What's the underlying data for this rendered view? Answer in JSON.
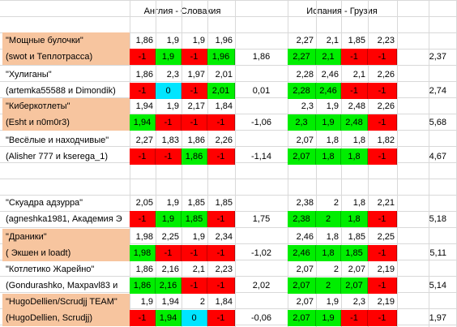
{
  "headers": {
    "match1": "Англия - Словакия",
    "match2": "Испания - Грузия"
  },
  "colors": {
    "red": "#ff0000",
    "green": "#00ee00",
    "cyan": "#00e5ff",
    "name_bg": "#f7c59f"
  },
  "teams": [
    {
      "name1": "\"Мощные булочки\"",
      "name2": "(swot и Теплотрасса)",
      "highlight": true,
      "odds1": [
        "1,86",
        "1,9",
        "1,9",
        "1,96"
      ],
      "res1": [
        {
          "v": "-1",
          "c": "red"
        },
        {
          "v": "1,9",
          "c": "green"
        },
        {
          "v": "-1",
          "c": "red"
        },
        {
          "v": "1,96",
          "c": "green"
        }
      ],
      "sum1": "1,86",
      "odds2": [
        "2,27",
        "2,1",
        "1,85",
        "2,23"
      ],
      "res2": [
        {
          "v": "2,27",
          "c": "green"
        },
        {
          "v": "2,1",
          "c": "green"
        },
        {
          "v": "-1",
          "c": "red"
        },
        {
          "v": "-1",
          "c": "red"
        }
      ],
      "sum2": "2,37"
    },
    {
      "name1": "\"Хулиганы\"",
      "name2": "(artemka55588 и Dimondik)",
      "highlight": false,
      "odds1": [
        "1,86",
        "2,3",
        "1,97",
        "2,01"
      ],
      "res1": [
        {
          "v": "-1",
          "c": "red"
        },
        {
          "v": "0",
          "c": "cyan"
        },
        {
          "v": "-1",
          "c": "red"
        },
        {
          "v": "2,01",
          "c": "green"
        }
      ],
      "sum1": "0,01",
      "odds2": [
        "2,28",
        "2,46",
        "2,1",
        "2,26"
      ],
      "res2": [
        {
          "v": "2,28",
          "c": "green"
        },
        {
          "v": "2,46",
          "c": "green"
        },
        {
          "v": "-1",
          "c": "red"
        },
        {
          "v": "-1",
          "c": "red"
        }
      ],
      "sum2": "2,74"
    },
    {
      "name1": "\"Киберкотлеты\"",
      "name2": "(Esht и n0m0r3)",
      "highlight": true,
      "odds1": [
        "1,94",
        "1,9",
        "2,17",
        "1,84"
      ],
      "res1": [
        {
          "v": "1,94",
          "c": "green"
        },
        {
          "v": "-1",
          "c": "red"
        },
        {
          "v": "-1",
          "c": "red"
        },
        {
          "v": "-1",
          "c": "red"
        }
      ],
      "sum1": "-1,06",
      "odds2": [
        "2,3",
        "1,9",
        "2,48",
        "2,26"
      ],
      "res2": [
        {
          "v": "2,3",
          "c": "green"
        },
        {
          "v": "1,9",
          "c": "green"
        },
        {
          "v": "2,48",
          "c": "green"
        },
        {
          "v": "-1",
          "c": "red"
        }
      ],
      "sum2": "5,68"
    },
    {
      "name1": "\"Весёлые и находчивые\"",
      "name2": "(Alisher 777 и kserega_1)",
      "highlight": false,
      "odds1": [
        "2,27",
        "1,83",
        "1,86",
        "2,26"
      ],
      "res1": [
        {
          "v": "-1",
          "c": "red"
        },
        {
          "v": "-1",
          "c": "red"
        },
        {
          "v": "1,86",
          "c": "green"
        },
        {
          "v": "-1",
          "c": "red"
        }
      ],
      "sum1": "-1,14",
      "odds2": [
        "2,07",
        "1,8",
        "1,8",
        "1,82"
      ],
      "res2": [
        {
          "v": "2,07",
          "c": "green"
        },
        {
          "v": "1,8",
          "c": "green"
        },
        {
          "v": "1,8",
          "c": "green"
        },
        {
          "v": "-1",
          "c": "red"
        }
      ],
      "sum2": "4,67"
    },
    {
      "name1": "\"Скуадра адзурра\"",
      "name2": "(agneshka1981, Академия Э",
      "highlight": false,
      "odds1": [
        "2,05",
        "1,9",
        "1,85",
        "1,85"
      ],
      "res1": [
        {
          "v": "-1",
          "c": "red"
        },
        {
          "v": "1,9",
          "c": "green"
        },
        {
          "v": "1,85",
          "c": "green"
        },
        {
          "v": "-1",
          "c": "red"
        }
      ],
      "sum1": "1,75",
      "odds2": [
        "2,38",
        "2",
        "1,8",
        "2,21"
      ],
      "res2": [
        {
          "v": "2,38",
          "c": "green"
        },
        {
          "v": "2",
          "c": "green"
        },
        {
          "v": "1,8",
          "c": "green"
        },
        {
          "v": "-1",
          "c": "red"
        }
      ],
      "sum2": "5,18"
    },
    {
      "name1": "\"Драники\"",
      "name2": "( Экшен и loadt)",
      "highlight": true,
      "odds1": [
        "1,98",
        "2,25",
        "1,9",
        "2,34"
      ],
      "res1": [
        {
          "v": "1,98",
          "c": "green"
        },
        {
          "v": "-1",
          "c": "red"
        },
        {
          "v": "-1",
          "c": "red"
        },
        {
          "v": "-1",
          "c": "red"
        }
      ],
      "sum1": "-1,02",
      "odds2": [
        "2,46",
        "1,8",
        "1,85",
        "2,25"
      ],
      "res2": [
        {
          "v": "2,46",
          "c": "green"
        },
        {
          "v": "1,8",
          "c": "green"
        },
        {
          "v": "1,85",
          "c": "green"
        },
        {
          "v": "-1",
          "c": "red"
        }
      ],
      "sum2": "5,11"
    },
    {
      "name1": "\"Котлетико Жарейно\"",
      "name2": "(Gondurashko, Maxpavl83 и",
      "highlight": false,
      "odds1": [
        "1,86",
        "2,16",
        "2,1",
        "2,23"
      ],
      "res1": [
        {
          "v": "1,86",
          "c": "green"
        },
        {
          "v": "2,16",
          "c": "green"
        },
        {
          "v": "-1",
          "c": "red"
        },
        {
          "v": "-1",
          "c": "red"
        }
      ],
      "sum1": "2,02",
      "odds2": [
        "2,07",
        "2",
        "2,07",
        "2,19"
      ],
      "res2": [
        {
          "v": "2,07",
          "c": "green"
        },
        {
          "v": "2",
          "c": "green"
        },
        {
          "v": "2,07",
          "c": "green"
        },
        {
          "v": "-1",
          "c": "red"
        }
      ],
      "sum2": "5,14"
    },
    {
      "name1": "\"HugoDellien/Scrudjj TEAM\"",
      "name2": "(HugoDellien, Scrudjj)",
      "highlight": true,
      "odds1": [
        "1,9",
        "1,94",
        "2",
        "1,84"
      ],
      "res1": [
        {
          "v": "-1",
          "c": "red"
        },
        {
          "v": "1,94",
          "c": "green"
        },
        {
          "v": "0",
          "c": "cyan"
        },
        {
          "v": "-1",
          "c": "red"
        }
      ],
      "sum1": "-0,06",
      "odds2": [
        "2,07",
        "1,9",
        "2,3",
        "2,19"
      ],
      "res2": [
        {
          "v": "2,07",
          "c": "green"
        },
        {
          "v": "1,9",
          "c": "green"
        },
        {
          "v": "-1",
          "c": "red"
        },
        {
          "v": "-1",
          "c": "red"
        }
      ],
      "sum2": "1,97"
    }
  ]
}
